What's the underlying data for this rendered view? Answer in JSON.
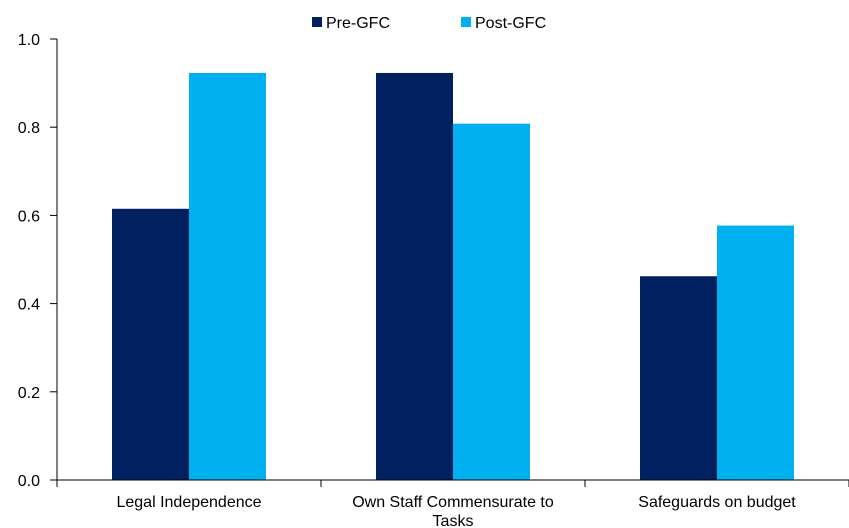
{
  "chart_data": {
    "type": "bar",
    "title": "",
    "xlabel": "",
    "ylabel": "",
    "categories": [
      "Legal Independence",
      "Own Staff Commensurate to Tasks",
      "Safeguards on budget"
    ],
    "category_lines": [
      [
        "Legal Independence"
      ],
      [
        "Own Staff Commensurate to",
        "Tasks"
      ],
      [
        "Safeguards on budget"
      ]
    ],
    "series": [
      {
        "name": "Pre-GFC",
        "color": "#002060",
        "values": [
          0.615,
          0.923,
          0.462
        ]
      },
      {
        "name": "Post-GFC",
        "color": "#00B0F0",
        "values": [
          0.923,
          0.808,
          0.577
        ]
      }
    ],
    "ylim": [
      0,
      1.0
    ],
    "yticks": [
      "0.0",
      "0.2",
      "0.4",
      "0.6",
      "0.8",
      "1.0"
    ],
    "grid": false,
    "legend_position": "top-center"
  }
}
